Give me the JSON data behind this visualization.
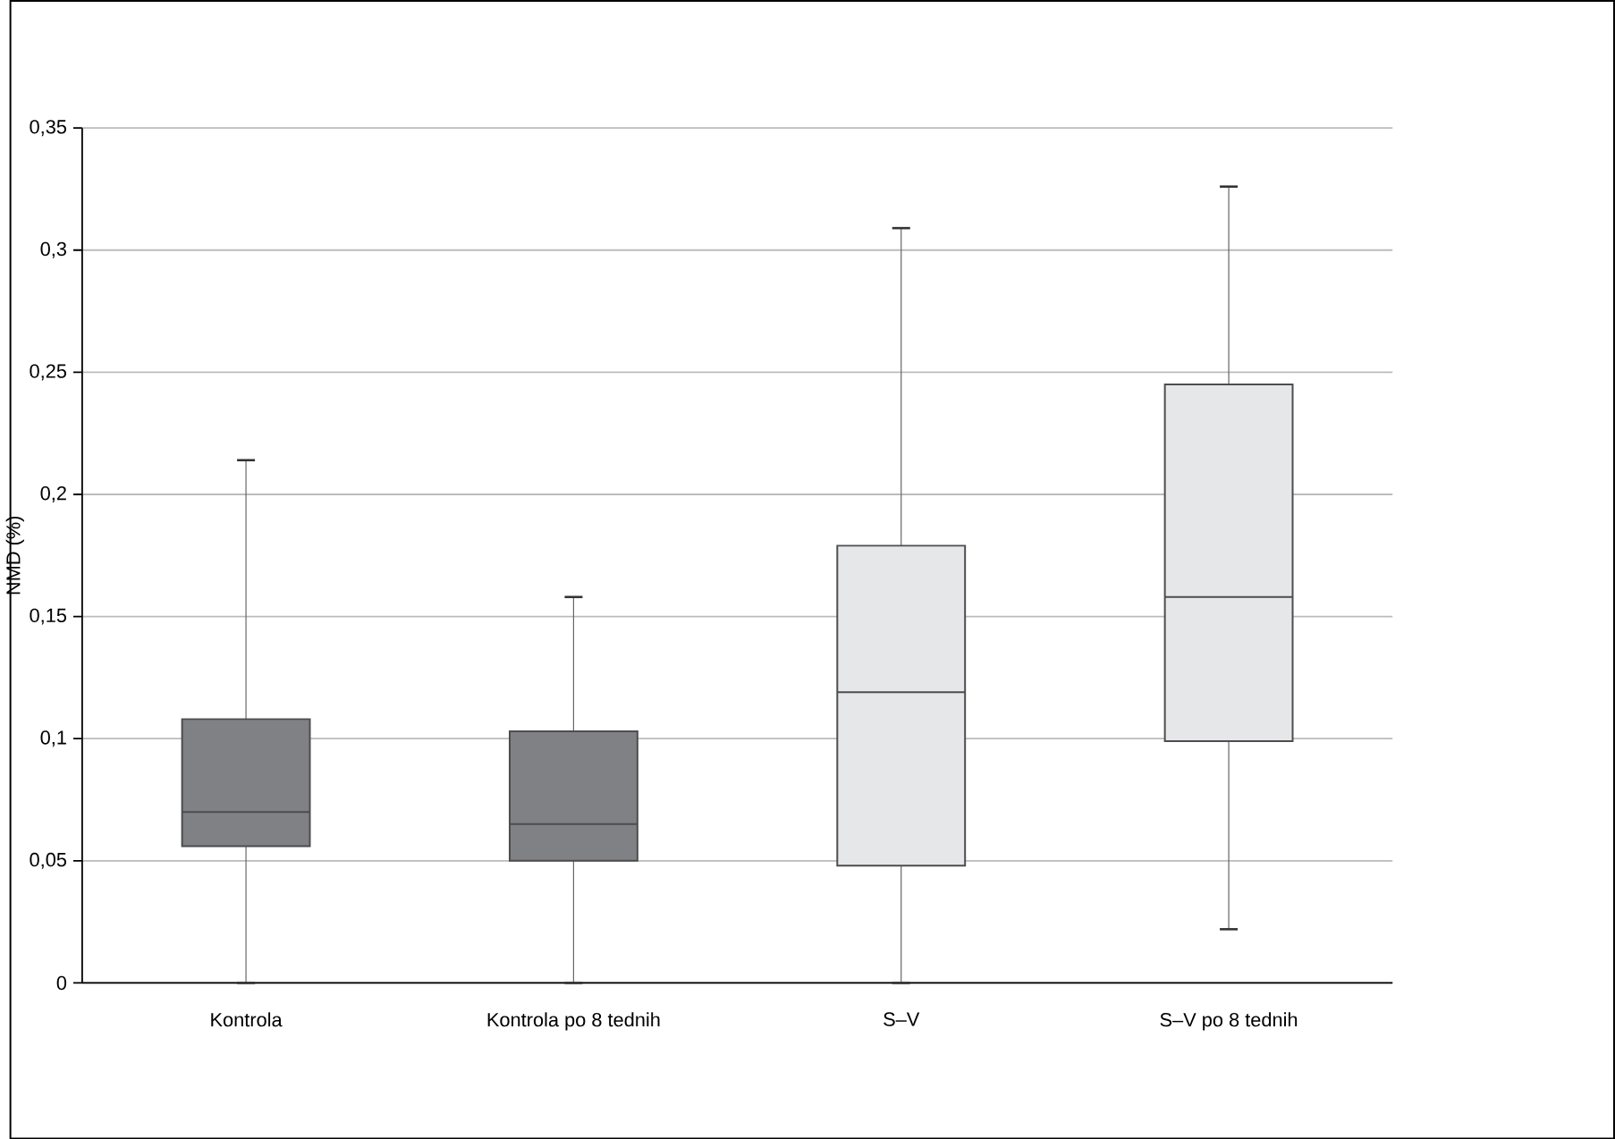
{
  "chart_data": {
    "type": "box",
    "ylabel": "NMD (%)",
    "categories": [
      "Kontrola",
      "Kontrola po 8 tednih",
      "S–V",
      "S–V po 8 tednih"
    ],
    "boxes": [
      {
        "low": 0,
        "q1": 0.056,
        "median": 0.07,
        "q3": 0.108,
        "high": 0.214
      },
      {
        "low": 0,
        "q1": 0.05,
        "median": 0.065,
        "q3": 0.103,
        "high": 0.158
      },
      {
        "low": 0,
        "q1": 0.048,
        "median": 0.119,
        "q3": 0.179,
        "high": 0.309
      },
      {
        "low": 0.022,
        "q1": 0.099,
        "median": 0.158,
        "q3": 0.245,
        "high": 0.326
      }
    ],
    "colors": [
      "#808184",
      "#808184",
      "#e6e7e8",
      "#e6e7e8"
    ],
    "ylim": [
      0,
      0.35
    ],
    "yticks": [
      {
        "value": 0,
        "label": "0"
      },
      {
        "value": 0.05,
        "label": "0,05"
      },
      {
        "value": 0.1,
        "label": "0,1"
      },
      {
        "value": 0.15,
        "label": "0,15"
      },
      {
        "value": 0.2,
        "label": "0,2"
      },
      {
        "value": 0.25,
        "label": "0,25"
      },
      {
        "value": 0.3,
        "label": "0,3"
      },
      {
        "value": 0.35,
        "label": "0,35"
      }
    ],
    "grid": "y"
  }
}
